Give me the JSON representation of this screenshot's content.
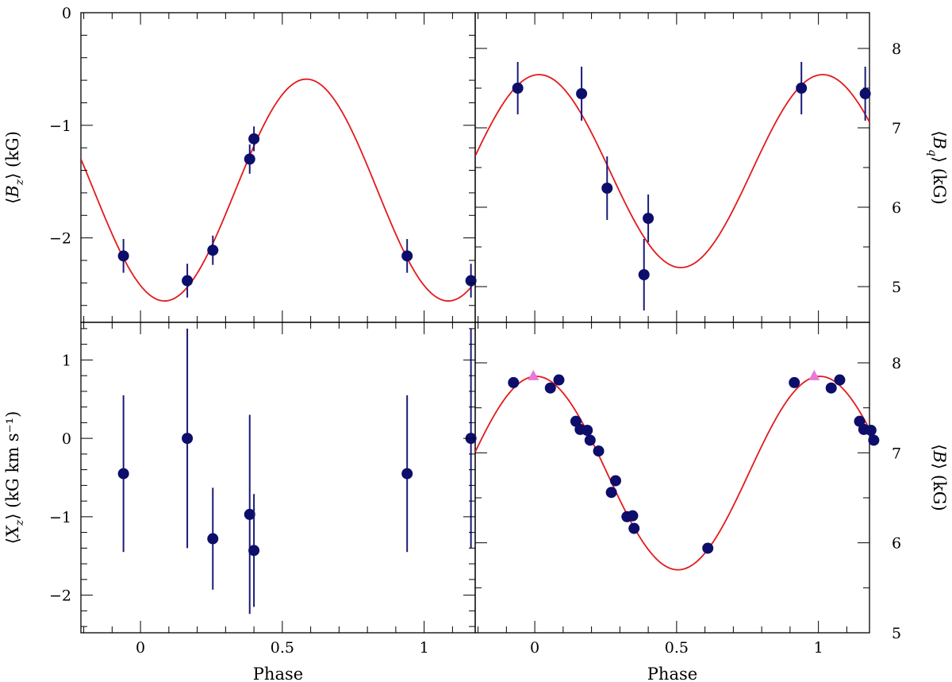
{
  "chart_data": [
    {
      "type": "scatter",
      "panel": "top-left",
      "ylabel": "⟨B_z⟩ (kG)",
      "ylabel_parts": {
        "open": "⟨",
        "sym": "B",
        "sub": "z",
        "close": "⟩",
        "unit": " (kG)"
      },
      "xlim": [
        -0.21,
        1.18
      ],
      "ylim": [
        -2.75,
        0
      ],
      "yticks": [
        {
          "v": 0,
          "label": "0"
        },
        {
          "v": -1,
          "label": "−1"
        },
        {
          "v": -2,
          "label": "−2"
        }
      ],
      "points": [
        {
          "x": -0.06,
          "y": -2.16,
          "err": 0.15
        },
        {
          "x": 0.165,
          "y": -2.38,
          "err": 0.15
        },
        {
          "x": 0.255,
          "y": -2.11,
          "err": 0.13
        },
        {
          "x": 0.385,
          "y": -1.3,
          "err": 0.13
        },
        {
          "x": 0.4,
          "y": -1.12,
          "err": 0.11
        },
        {
          "x": 0.94,
          "y": -2.16,
          "err": 0.15
        },
        {
          "x": 1.165,
          "y": -2.38,
          "err": 0.15
        }
      ],
      "model": {
        "mean": -1.575,
        "amp": 0.985,
        "peak_phase": 0.585
      }
    },
    {
      "type": "scatter",
      "panel": "top-right",
      "ylabel": "⟨B_q⟩ (kG)",
      "ylabel_parts": {
        "open": "⟨",
        "sym": "B",
        "sub": "q",
        "close": "⟩",
        "unit": " (kG)"
      },
      "xlim": [
        -0.21,
        1.18
      ],
      "ylim": [
        4.55,
        8.45
      ],
      "yticks": [
        {
          "v": 5,
          "label": "5"
        },
        {
          "v": 6,
          "label": "6"
        },
        {
          "v": 7,
          "label": "7"
        },
        {
          "v": 8,
          "label": "8"
        }
      ],
      "points": [
        {
          "x": -0.06,
          "y": 7.5,
          "err": 0.33
        },
        {
          "x": 0.165,
          "y": 7.43,
          "err": 0.34
        },
        {
          "x": 0.255,
          "y": 6.24,
          "err": 0.4
        },
        {
          "x": 0.385,
          "y": 5.15,
          "err": 0.45
        },
        {
          "x": 0.4,
          "y": 5.86,
          "err": 0.3
        },
        {
          "x": 0.94,
          "y": 7.5,
          "err": 0.33
        },
        {
          "x": 1.165,
          "y": 7.43,
          "err": 0.34
        }
      ],
      "model": {
        "mean": 6.455,
        "amp": 1.215,
        "peak_phase": 0.015
      }
    },
    {
      "type": "scatter",
      "panel": "bottom-left",
      "xlabel": "Phase",
      "ylabel": "⟨X_z⟩ (kG km s⁻¹)",
      "ylabel_parts": {
        "open": "⟨",
        "sym": "X",
        "sub": "z",
        "close": "⟩",
        "unit": " (kG km s⁻¹)"
      },
      "xlim": [
        -0.21,
        1.18
      ],
      "ylim": [
        -2.48,
        1.48
      ],
      "xticks": [
        {
          "v": 0,
          "label": "0"
        },
        {
          "v": 0.5,
          "label": "0.5"
        },
        {
          "v": 1,
          "label": "1"
        }
      ],
      "yticks": [
        {
          "v": 1,
          "label": "1"
        },
        {
          "v": 0,
          "label": "0"
        },
        {
          "v": -1,
          "label": "−1"
        },
        {
          "v": -2,
          "label": "−2"
        }
      ],
      "points": [
        {
          "x": -0.06,
          "y": -0.45,
          "err": 1.0
        },
        {
          "x": 0.165,
          "y": 0.0,
          "err": 1.4
        },
        {
          "x": 0.255,
          "y": -1.28,
          "err": 0.65
        },
        {
          "x": 0.385,
          "y": -0.97,
          "err": 1.27
        },
        {
          "x": 0.4,
          "y": -1.43,
          "err": 0.72
        },
        {
          "x": 0.94,
          "y": -0.45,
          "err": 1.0
        },
        {
          "x": 1.165,
          "y": 0.0,
          "err": 1.4
        }
      ]
    },
    {
      "type": "scatter",
      "panel": "bottom-right",
      "xlabel": "Phase",
      "ylabel": "⟨B⟩ (kG)",
      "ylabel_parts": {
        "open": "⟨",
        "sym": "B",
        "sub": "",
        "close": "⟩",
        "unit": " (kG)"
      },
      "xlim": [
        -0.21,
        1.18
      ],
      "ylim": [
        5.0,
        8.45
      ],
      "xticks": [
        {
          "v": 0,
          "label": "0"
        },
        {
          "v": 0.5,
          "label": "0.5"
        },
        {
          "v": 1,
          "label": "1"
        }
      ],
      "yticks": [
        {
          "v": 5,
          "label": "5"
        },
        {
          "v": 6,
          "label": "6"
        },
        {
          "v": 7,
          "label": "7"
        },
        {
          "v": 8,
          "label": "8"
        }
      ],
      "points": [
        {
          "x": -0.075,
          "y": 7.78
        },
        {
          "x": 0.055,
          "y": 7.72
        },
        {
          "x": 0.085,
          "y": 7.81
        },
        {
          "x": 0.145,
          "y": 7.35
        },
        {
          "x": 0.16,
          "y": 7.26
        },
        {
          "x": 0.185,
          "y": 7.25
        },
        {
          "x": 0.195,
          "y": 7.14
        },
        {
          "x": 0.225,
          "y": 7.02
        },
        {
          "x": 0.27,
          "y": 6.56
        },
        {
          "x": 0.285,
          "y": 6.69
        },
        {
          "x": 0.325,
          "y": 6.29
        },
        {
          "x": 0.345,
          "y": 6.3
        },
        {
          "x": 0.35,
          "y": 6.16
        },
        {
          "x": 0.61,
          "y": 5.94
        },
        {
          "x": 0.915,
          "y": 7.78
        },
        {
          "x": 1.045,
          "y": 7.72
        },
        {
          "x": 1.075,
          "y": 7.81
        },
        {
          "x": 1.145,
          "y": 7.35
        },
        {
          "x": 1.16,
          "y": 7.26
        },
        {
          "x": 1.185,
          "y": 7.25
        },
        {
          "x": 1.195,
          "y": 7.14
        }
      ],
      "triangles": [
        {
          "x": -0.005,
          "y": 7.86
        },
        {
          "x": 0.985,
          "y": 7.86
        }
      ],
      "model": {
        "mean": 6.775,
        "amp": 1.075,
        "peak_phase": 0.005
      }
    }
  ]
}
